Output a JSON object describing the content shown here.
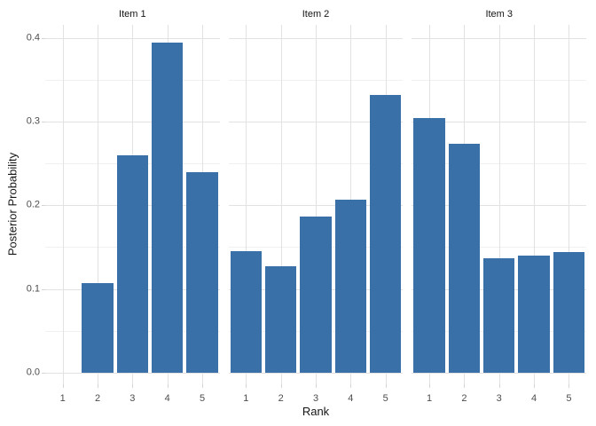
{
  "chart_data": {
    "type": "bar",
    "title": "",
    "xlabel": "Rank",
    "ylabel": "Posterior Probability",
    "categories": [
      "1",
      "2",
      "3",
      "4",
      "5"
    ],
    "facets": [
      {
        "label": "Item 1",
        "values": [
          0,
          0.107,
          0.26,
          0.394,
          0.24
        ]
      },
      {
        "label": "Item 2",
        "values": [
          0.145,
          0.127,
          0.186,
          0.207,
          0.332
        ]
      },
      {
        "label": "Item 3",
        "values": [
          0.304,
          0.273,
          0.137,
          0.14,
          0.144
        ]
      }
    ],
    "y_tick_labels": [
      "0.0",
      "0.1",
      "0.2",
      "0.3",
      "0.4"
    ],
    "ylim": [
      0,
      0.416
    ],
    "grid": {
      "major_horizontal": true,
      "minor_horizontal": true,
      "vertical_at_categories": true
    },
    "legend": "none"
  },
  "colors": {
    "bar": "#3A70A8",
    "grid_major": "#E2E2E2",
    "grid_minor": "#F0F0F0",
    "tick_mark": "#D4D4D4",
    "tick_label_text": "#4D4D4D",
    "axis_title_text": "#151515",
    "facet_title_text": "#151515",
    "background": "#FFFFFF"
  }
}
